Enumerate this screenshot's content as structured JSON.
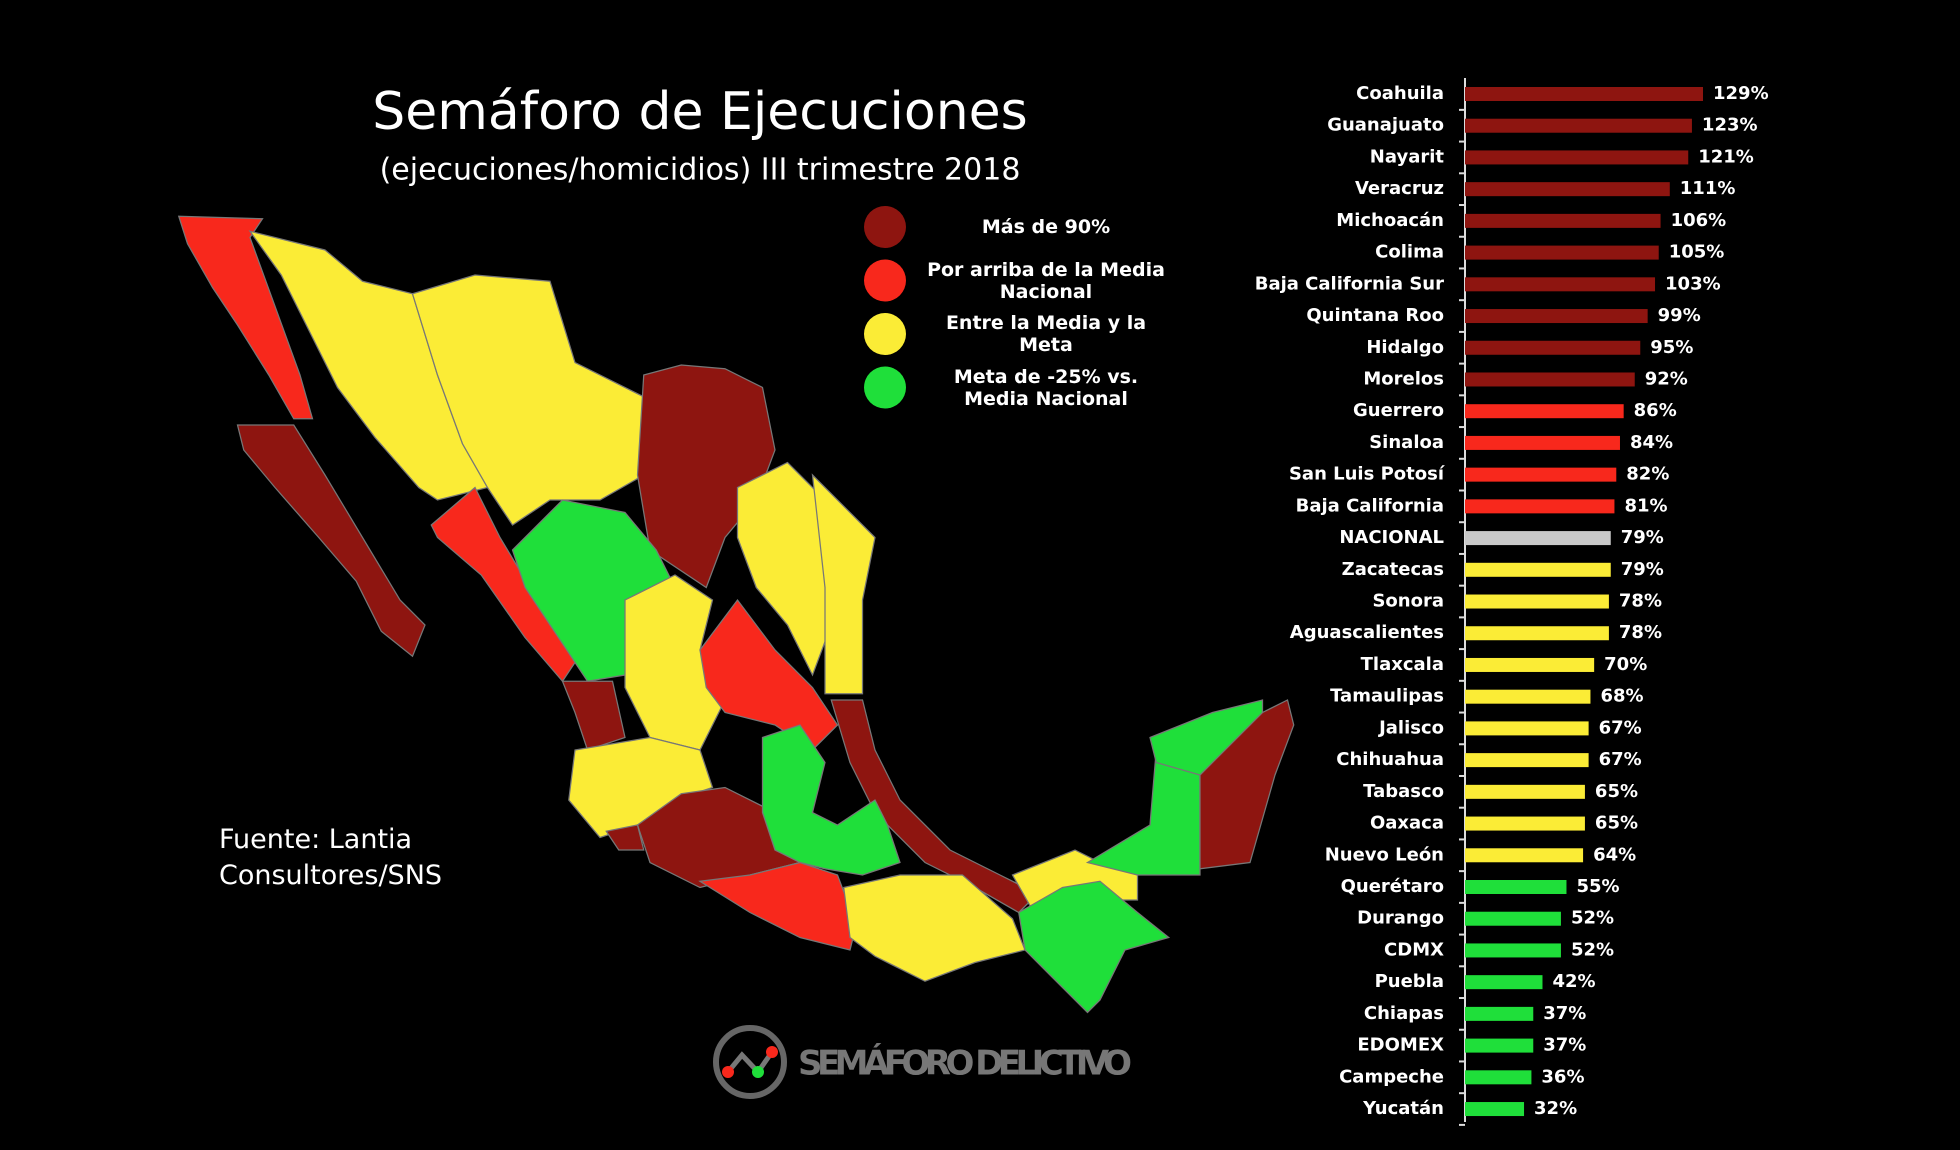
{
  "chart_data": {
    "type": "bar",
    "orientation": "horizontal",
    "title": "Semáforo de Ejecuciones",
    "subtitle": "(ejecuciones/homicidios) III trimestre 2018",
    "categories": [
      "Coahuila",
      "Guanajuato",
      "Nayarit",
      "Veracruz",
      "Michoacán",
      "Colima",
      "Baja California Sur",
      "Quintana Roo",
      "Hidalgo",
      "Morelos",
      "Guerrero",
      "Sinaloa",
      "San Luis Potosí",
      "Baja California",
      "NACIONAL",
      "Zacatecas",
      "Sonora",
      "Aguascalientes",
      "Tlaxcala",
      "Tamaulipas",
      "Jalisco",
      "Chihuahua",
      "Tabasco",
      "Oaxaca",
      "Nuevo León",
      "Querétaro",
      "Durango",
      "CDMX",
      "Puebla",
      "Chiapas",
      "EDOMEX",
      "Campeche",
      "Yucatán"
    ],
    "values": [
      129,
      123,
      121,
      111,
      106,
      105,
      103,
      99,
      95,
      92,
      86,
      84,
      82,
      81,
      79,
      79,
      78,
      78,
      70,
      68,
      67,
      67,
      65,
      65,
      64,
      55,
      52,
      52,
      42,
      37,
      37,
      36,
      32
    ],
    "value_labels": [
      "129%",
      "123%",
      "121%",
      "111%",
      "106%",
      "105%",
      "103%",
      "99%",
      "95%",
      "92%",
      "86%",
      "84%",
      "82%",
      "81%",
      "79%",
      "79%",
      "78%",
      "78%",
      "70%",
      "68%",
      "67%",
      "67%",
      "65%",
      "65%",
      "64%",
      "55%",
      "52%",
      "52%",
      "42%",
      "37%",
      "37%",
      "36%",
      "32%"
    ],
    "colors": [
      "#8e1510",
      "#8e1510",
      "#8e1510",
      "#8e1510",
      "#8e1510",
      "#8e1510",
      "#8e1510",
      "#8e1510",
      "#8e1510",
      "#8e1510",
      "#f8281c",
      "#f8281c",
      "#f8281c",
      "#f8281c",
      "#c8c8c8",
      "#fbec36",
      "#fbec36",
      "#fbec36",
      "#fbec36",
      "#fbec36",
      "#fbec36",
      "#fbec36",
      "#fbec36",
      "#fbec36",
      "#fbec36",
      "#1fdf3a",
      "#1fdf3a",
      "#1fdf3a",
      "#1fdf3a",
      "#1fdf3a",
      "#1fdf3a",
      "#1fdf3a",
      "#1fdf3a"
    ],
    "legend": [
      {
        "label": "Más de 90%",
        "color": "#8e1510"
      },
      {
        "label": "Por arriba de la Media Nacional",
        "color": "#f8281c"
      },
      {
        "label": "Entre la Media y la Meta",
        "color": "#fbec36"
      },
      {
        "label": "Meta de -25% vs. Media Nacional",
        "color": "#1fdf3a"
      }
    ],
    "source": "Fuente: Lantia Consultores/SNS",
    "logo": "SEMÁFORO DELICTIVO"
  }
}
